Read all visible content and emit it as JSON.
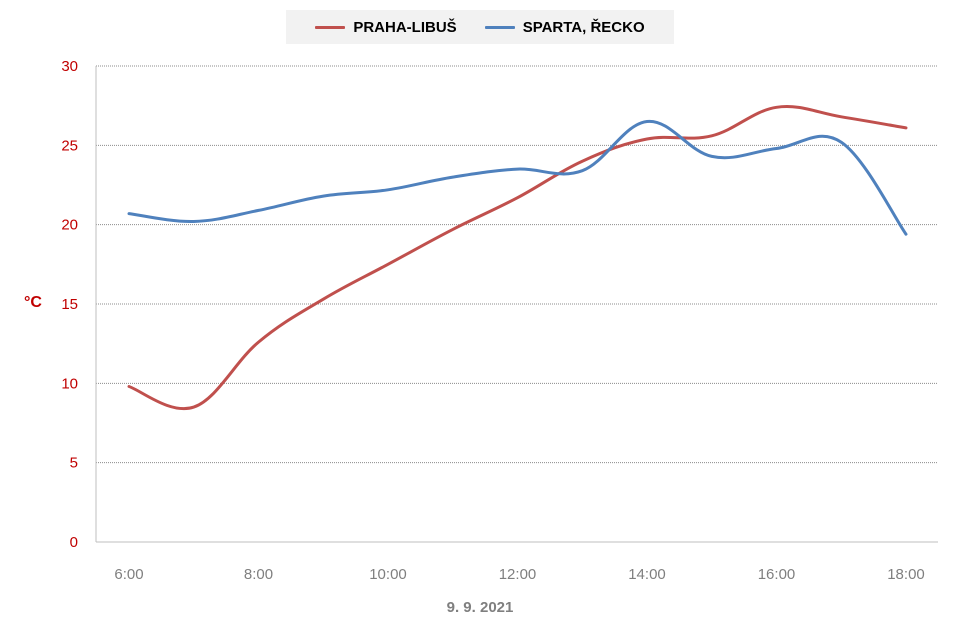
{
  "chart_data": {
    "type": "line",
    "xlabel": "9. 9. 2021",
    "ylabel": "°C",
    "ylim": [
      0,
      30
    ],
    "y_ticks": [
      "0",
      "5",
      "10",
      "15",
      "20",
      "25",
      "30"
    ],
    "x_ticks": [
      "6:00",
      "8:00",
      "10:00",
      "12:00",
      "14:00",
      "16:00",
      "18:00"
    ],
    "x": [
      "6:00",
      "7:00",
      "8:00",
      "9:00",
      "10:00",
      "11:00",
      "12:00",
      "13:00",
      "14:00",
      "15:00",
      "16:00",
      "17:00",
      "18:00"
    ],
    "series": [
      {
        "name": "PRAHA-LIBUŠ",
        "color": "#c0504d",
        "values": [
          9.8,
          8.5,
          12.6,
          15.3,
          17.5,
          19.7,
          21.7,
          24.0,
          25.4,
          25.6,
          27.4,
          26.8,
          26.1
        ]
      },
      {
        "name": "SPARTA, ŘECKO",
        "color": "#4f81bd",
        "values": [
          20.7,
          20.2,
          20.9,
          21.8,
          22.2,
          23.0,
          23.5,
          23.4,
          26.5,
          24.3,
          24.8,
          25.2,
          19.4
        ]
      }
    ],
    "grid": true,
    "legend": "top",
    "axis_tick_color": "#c00000",
    "x_tick_color": "#7f7f7f"
  }
}
